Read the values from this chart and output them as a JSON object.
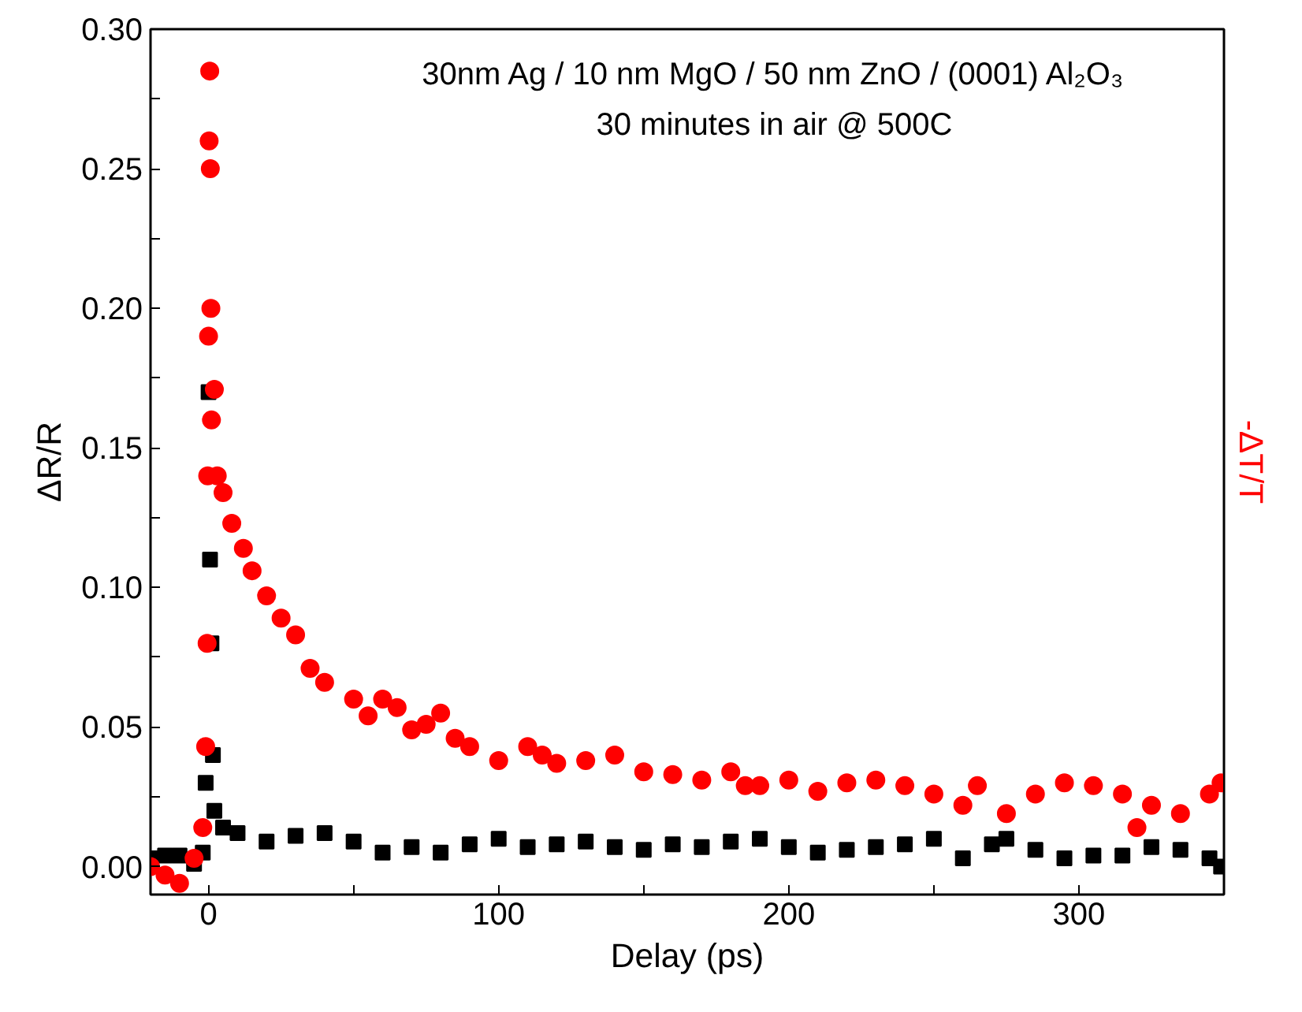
{
  "chart_data": {
    "type": "scatter",
    "title": "30nm Ag / 10 nm MgO / 50 nm ZnO / (0001) Al₂O₃",
    "subtitle": "30 minutes in air @ 500C",
    "xlabel": "Delay (ps)",
    "ylabel": "ΔR/R",
    "y2label": "-ΔT/T",
    "xlim": [
      -20,
      350
    ],
    "ylim": [
      -0.01,
      0.3
    ],
    "xticks": [
      0,
      {
        "value": 50,
        "label": null
      },
      100,
      {
        "value": 150,
        "label": null
      },
      200,
      {
        "value": 250,
        "label": null
      },
      300
    ],
    "yticks": [
      {
        "value": 0,
        "label": "0.00"
      },
      {
        "value": 0.025,
        "label": null
      },
      {
        "value": 0.05,
        "label": "0.05"
      },
      {
        "value": 0.075,
        "label": null
      },
      {
        "value": 0.1,
        "label": "0.10"
      },
      {
        "value": 0.125,
        "label": null
      },
      {
        "value": 0.15,
        "label": "0.15"
      },
      {
        "value": 0.175,
        "label": null
      },
      {
        "value": 0.2,
        "label": "0.20"
      },
      {
        "value": 0.225,
        "label": null
      },
      {
        "value": 0.25,
        "label": "0.25"
      },
      {
        "value": 0.275,
        "label": null
      },
      {
        "value": 0.3,
        "label": "0.30"
      }
    ],
    "grid": false,
    "series": [
      {
        "color": "#000000",
        "marker": "square",
        "x": [
          -20,
          -15,
          -10,
          -5,
          -2,
          -1,
          0,
          0.5,
          1,
          1.5,
          2,
          5,
          10,
          20,
          30,
          40,
          50,
          60,
          70,
          80,
          90,
          100,
          110,
          120,
          130,
          140,
          150,
          160,
          170,
          180,
          190,
          200,
          210,
          220,
          230,
          240,
          250,
          260,
          270,
          275,
          285,
          295,
          305,
          315,
          325,
          335,
          345,
          349
        ],
        "values": [
          0.003,
          0.004,
          0.004,
          0.001,
          0.005,
          0.03,
          0.17,
          0.11,
          0.08,
          0.04,
          0.02,
          0.014,
          0.012,
          0.009,
          0.011,
          0.012,
          0.009,
          0.005,
          0.007,
          0.005,
          0.008,
          0.01,
          0.007,
          0.008,
          0.009,
          0.007,
          0.006,
          0.008,
          0.007,
          0.009,
          0.01,
          0.007,
          0.005,
          0.006,
          0.007,
          0.008,
          0.01,
          0.003,
          0.008,
          0.01,
          0.006,
          0.003,
          0.004,
          0.004,
          0.007,
          0.006,
          0.003,
          0.0
        ]
      },
      {
        "color": "#ff0000",
        "marker": "circle",
        "x": [
          -20,
          -15,
          -10,
          -5,
          -2,
          -1,
          -0.5,
          -0.3,
          0,
          0.2,
          0.4,
          0.6,
          0.8,
          1,
          2,
          3,
          5,
          8,
          12,
          15,
          20,
          25,
          30,
          35,
          40,
          50,
          55,
          60,
          65,
          70,
          75,
          80,
          85,
          90,
          100,
          110,
          115,
          120,
          130,
          140,
          150,
          160,
          170,
          180,
          185,
          190,
          200,
          210,
          220,
          230,
          240,
          250,
          260,
          265,
          275,
          285,
          295,
          305,
          315,
          320,
          325,
          335,
          345,
          349
        ],
        "values": [
          0.0,
          -0.003,
          -0.006,
          0.003,
          0.014,
          0.043,
          0.08,
          0.14,
          0.19,
          0.26,
          0.285,
          0.25,
          0.2,
          0.16,
          0.171,
          0.14,
          0.134,
          0.123,
          0.114,
          0.106,
          0.097,
          0.089,
          0.083,
          0.071,
          0.066,
          0.06,
          0.054,
          0.06,
          0.057,
          0.049,
          0.051,
          0.055,
          0.046,
          0.043,
          0.038,
          0.043,
          0.04,
          0.037,
          0.038,
          0.04,
          0.034,
          0.033,
          0.031,
          0.034,
          0.029,
          0.029,
          0.031,
          0.027,
          0.03,
          0.031,
          0.029,
          0.026,
          0.022,
          0.029,
          0.019,
          0.026,
          0.03,
          0.029,
          0.026,
          0.014,
          0.022,
          0.019,
          0.026,
          0.03
        ]
      }
    ]
  }
}
